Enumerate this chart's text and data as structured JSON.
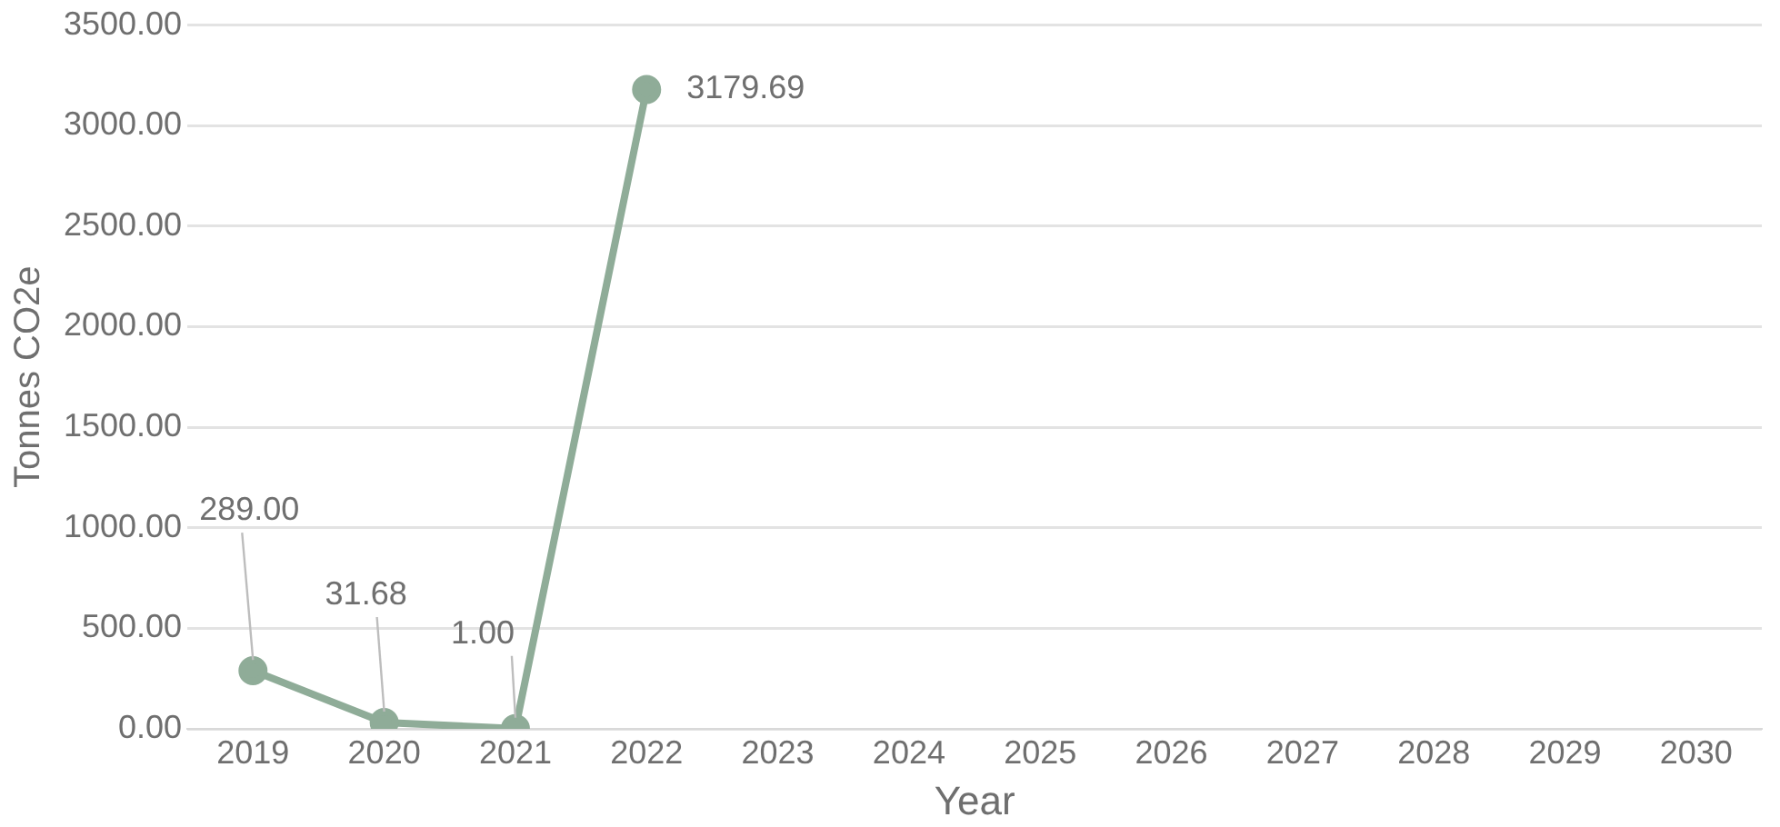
{
  "chart_data": {
    "type": "line",
    "xlabel": "Year",
    "ylabel": "Tonnes CO2e",
    "categories": [
      "2019",
      "2020",
      "2021",
      "2022",
      "2023",
      "2024",
      "2025",
      "2026",
      "2027",
      "2028",
      "2029",
      "2030"
    ],
    "series": [
      {
        "color": "#8fac98",
        "values": [
          289,
          31.68,
          1,
          3179.69,
          null,
          null,
          null,
          null,
          null,
          null,
          null,
          null
        ],
        "value_labels": [
          "289.00",
          "31.68",
          "1.00",
          "3179.69",
          null,
          null,
          null,
          null,
          null,
          null,
          null,
          null
        ]
      }
    ],
    "ylim": [
      0,
      3500
    ],
    "yticks": [
      {
        "value": 0,
        "label": "0.00"
      },
      {
        "value": 500,
        "label": "500.00"
      },
      {
        "value": 1000,
        "label": "1000.00"
      },
      {
        "value": 1500,
        "label": "1500.00"
      },
      {
        "value": 2000,
        "label": "2000.00"
      },
      {
        "value": 2500,
        "label": "2500.00"
      },
      {
        "value": 3000,
        "label": "3000.00"
      },
      {
        "value": 3500,
        "label": "3500.00"
      }
    ],
    "grid": "y",
    "legend": false,
    "marker": "circle",
    "line_style": "solid"
  }
}
